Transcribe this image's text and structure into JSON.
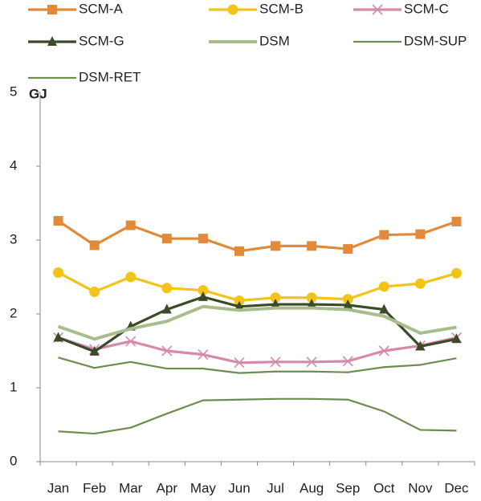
{
  "chart_data": {
    "type": "line",
    "y_label": "GJ",
    "categories": [
      "Jan",
      "Feb",
      "Mar",
      "Apr",
      "May",
      "Jun",
      "Jul",
      "Aug",
      "Sep",
      "Oct",
      "Nov",
      "Dec"
    ],
    "ylim": [
      0,
      5
    ],
    "yticks": [
      0,
      1,
      2,
      3,
      4,
      5
    ],
    "series": [
      {
        "name": "SCM-A",
        "color": "#e08a3a",
        "marker": "square",
        "values": [
          3.26,
          2.93,
          3.2,
          3.02,
          3.02,
          2.85,
          2.92,
          2.92,
          2.88,
          3.07,
          3.08,
          3.25
        ]
      },
      {
        "name": "SCM-B",
        "color": "#f2c318",
        "marker": "circle",
        "values": [
          2.56,
          2.3,
          2.5,
          2.35,
          2.32,
          2.18,
          2.22,
          2.22,
          2.2,
          2.37,
          2.41,
          2.55
        ]
      },
      {
        "name": "SCM-C",
        "color": "#d48aa8",
        "marker": "x",
        "values": [
          1.68,
          1.52,
          1.63,
          1.5,
          1.45,
          1.34,
          1.35,
          1.35,
          1.36,
          1.5,
          1.57,
          1.68
        ]
      },
      {
        "name": "SCM-G",
        "color": "#3b4a28",
        "marker": "triangle",
        "values": [
          1.68,
          1.49,
          1.83,
          2.06,
          2.23,
          2.1,
          2.13,
          2.13,
          2.12,
          2.06,
          1.56,
          1.66
        ]
      },
      {
        "name": "DSM",
        "color": "#a8bc8c",
        "marker": "none",
        "values": [
          1.83,
          1.66,
          1.8,
          1.9,
          2.1,
          2.05,
          2.08,
          2.08,
          2.06,
          1.97,
          1.74,
          1.82
        ]
      },
      {
        "name": "DSM-SUP",
        "color": "#6e8c50",
        "marker": "none",
        "values": [
          1.41,
          1.27,
          1.35,
          1.26,
          1.26,
          1.2,
          1.22,
          1.22,
          1.21,
          1.28,
          1.31,
          1.4
        ]
      },
      {
        "name": "DSM-RET",
        "color": "#6e8c50",
        "marker": "none",
        "values": [
          0.41,
          0.38,
          0.46,
          0.65,
          0.83,
          0.84,
          0.85,
          0.85,
          0.84,
          0.68,
          0.43,
          0.42
        ]
      }
    ]
  }
}
